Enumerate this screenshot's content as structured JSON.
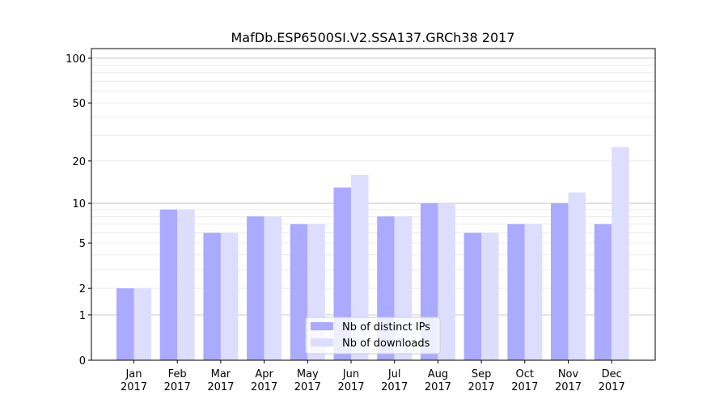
{
  "chart_data": {
    "type": "bar",
    "title": "MafDb.ESP6500SI.V2.SSA137.GRCh38 2017",
    "xlabel": "",
    "ylabel": "",
    "yscale": "symlog",
    "ylim": [
      0,
      116
    ],
    "yticks": [
      0,
      1,
      2,
      5,
      10,
      20,
      50,
      100
    ],
    "grid": true,
    "legend_position": "bottom-center",
    "categories": [
      "Jan\n2017",
      "Feb\n2017",
      "Mar\n2017",
      "Apr\n2017",
      "May\n2017",
      "Jun\n2017",
      "Jul\n2017",
      "Aug\n2017",
      "Sep\n2017",
      "Oct\n2017",
      "Nov\n2017",
      "Dec\n2017"
    ],
    "series": [
      {
        "name": "Nb of distinct IPs",
        "color": "#aaaaff",
        "values": [
          2,
          9,
          6,
          8,
          7,
          13,
          8,
          10,
          6,
          7,
          10,
          7
        ]
      },
      {
        "name": "Nb of downloads",
        "color": "#ddddff",
        "values": [
          2,
          9,
          6,
          8,
          7,
          16,
          8,
          10,
          6,
          7,
          12,
          25
        ]
      }
    ]
  }
}
